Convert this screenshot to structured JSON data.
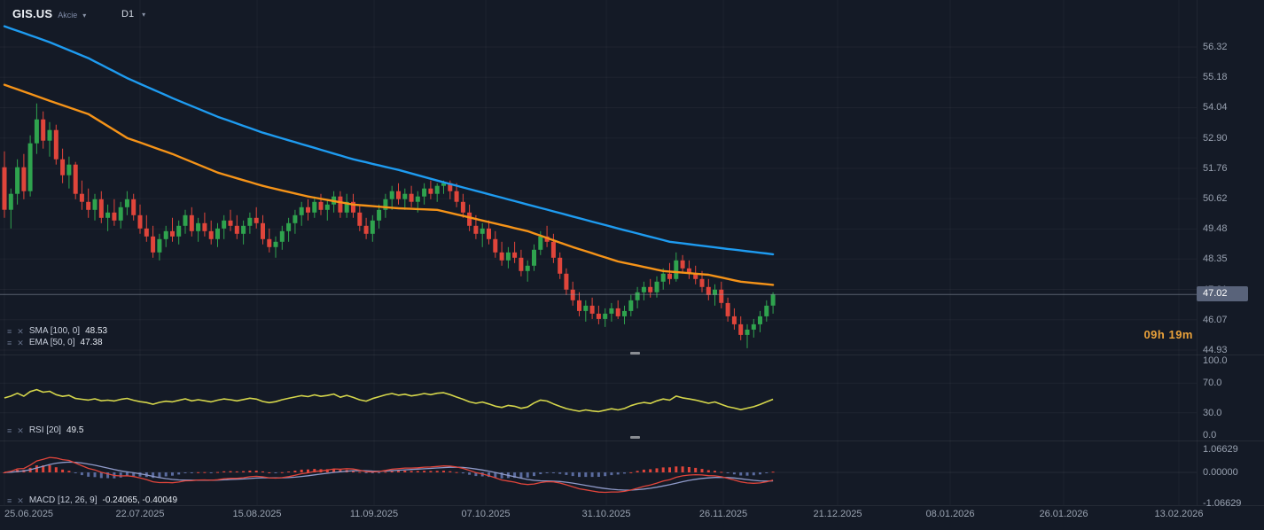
{
  "instrument": {
    "symbol": "GIS.US",
    "type_label": "Akcie",
    "timeframe": "D1"
  },
  "indicator_rows": {
    "sma": {
      "label": "SMA [100, 0]",
      "value": "48.53"
    },
    "ema": {
      "label": "EMA [50, 0]",
      "value": "47.38"
    },
    "rsi": {
      "label": "RSI [20]",
      "value": "49.5"
    },
    "macd": {
      "label": "MACD [12, 26, 9]",
      "value": "-0.24065, -0.40049"
    }
  },
  "price_scale": {
    "ticks": [
      "56.32",
      "55.18",
      "54.04",
      "52.90",
      "51.76",
      "50.62",
      "49.48",
      "48.35",
      "47.21",
      "46.07",
      "44.93"
    ],
    "current_price": "47.02",
    "countdown": "09h 19m"
  },
  "rsi_scale": {
    "ticks": [
      "100.0",
      "70.0",
      "30.0",
      "0.0"
    ]
  },
  "macd_scale": {
    "ticks": [
      "1.06629",
      "0.00000",
      "-1.06629"
    ]
  },
  "time_axis": {
    "labels": [
      "25.06.2025",
      "22.07.2025",
      "15.08.2025",
      "11.09.2025",
      "07.10.2025",
      "31.10.2025",
      "26.11.2025",
      "21.12.2025",
      "08.01.2026",
      "26.01.2026",
      "13.02.2026"
    ]
  },
  "chart_data": {
    "type": "candlestick",
    "symbol": "GIS.US",
    "timeframe": "D1",
    "title": "GIS.US daily candlestick chart with SMA(100), EMA(50), RSI(20) and MACD(12,26,9)",
    "x_axis_labels": [
      "25.06.2025",
      "22.07.2025",
      "15.08.2025",
      "11.09.2025",
      "07.10.2025",
      "31.10.2025",
      "26.11.2025",
      "21.12.2025",
      "08.01.2026",
      "26.01.2026",
      "13.02.2026"
    ],
    "y_axis_ticks": [
      56.32,
      55.18,
      54.04,
      52.9,
      51.76,
      50.62,
      49.48,
      48.35,
      47.21,
      46.07,
      44.93
    ],
    "current_price": 47.02,
    "candle_close_countdown": "09h 19m",
    "candles": [
      [
        51.8,
        52.4,
        49.9,
        50.2
      ],
      [
        50.2,
        51.0,
        49.5,
        50.8
      ],
      [
        50.8,
        52.1,
        50.4,
        51.8
      ],
      [
        51.8,
        52.3,
        50.6,
        50.9
      ],
      [
        50.9,
        53.0,
        50.7,
        52.7
      ],
      [
        52.7,
        54.2,
        52.3,
        53.6
      ],
      [
        53.6,
        53.9,
        52.5,
        52.8
      ],
      [
        52.8,
        53.5,
        52.2,
        53.2
      ],
      [
        53.2,
        53.4,
        51.9,
        52.1
      ],
      [
        52.1,
        52.5,
        51.2,
        51.5
      ],
      [
        51.5,
        52.2,
        51.0,
        51.9
      ],
      [
        51.9,
        52.0,
        50.6,
        50.8
      ],
      [
        50.8,
        51.3,
        50.2,
        50.5
      ],
      [
        50.5,
        51.0,
        49.9,
        50.2
      ],
      [
        50.2,
        50.8,
        49.8,
        50.6
      ],
      [
        50.6,
        50.9,
        49.7,
        49.9
      ],
      [
        49.9,
        50.4,
        49.4,
        50.1
      ],
      [
        50.1,
        50.6,
        49.6,
        49.8
      ],
      [
        49.8,
        50.5,
        49.5,
        50.3
      ],
      [
        50.3,
        50.9,
        50.0,
        50.6
      ],
      [
        50.6,
        50.8,
        49.8,
        50.0
      ],
      [
        50.0,
        50.4,
        49.3,
        49.5
      ],
      [
        49.5,
        50.0,
        49.0,
        49.2
      ],
      [
        49.2,
        49.6,
        48.4,
        48.6
      ],
      [
        48.6,
        49.3,
        48.3,
        49.1
      ],
      [
        49.1,
        49.6,
        48.8,
        49.4
      ],
      [
        49.4,
        49.9,
        49.0,
        49.2
      ],
      [
        49.2,
        49.8,
        48.9,
        49.6
      ],
      [
        49.6,
        50.2,
        49.3,
        50.0
      ],
      [
        50.0,
        50.3,
        49.2,
        49.4
      ],
      [
        49.4,
        49.9,
        49.0,
        49.7
      ],
      [
        49.7,
        50.1,
        49.2,
        49.4
      ],
      [
        49.4,
        49.8,
        48.9,
        49.1
      ],
      [
        49.1,
        49.7,
        48.8,
        49.5
      ],
      [
        49.5,
        50.0,
        49.1,
        49.8
      ],
      [
        49.8,
        50.2,
        49.4,
        49.6
      ],
      [
        49.6,
        50.0,
        49.1,
        49.3
      ],
      [
        49.3,
        49.8,
        48.9,
        49.6
      ],
      [
        49.6,
        50.1,
        49.3,
        49.9
      ],
      [
        49.9,
        50.3,
        49.5,
        49.7
      ],
      [
        49.7,
        50.0,
        48.9,
        49.1
      ],
      [
        49.1,
        49.5,
        48.6,
        48.8
      ],
      [
        48.8,
        49.2,
        48.4,
        49.0
      ],
      [
        49.0,
        49.6,
        48.7,
        49.4
      ],
      [
        49.4,
        49.9,
        49.0,
        49.7
      ],
      [
        49.7,
        50.2,
        49.3,
        50.0
      ],
      [
        50.0,
        50.5,
        49.6,
        50.3
      ],
      [
        50.3,
        50.6,
        49.8,
        50.1
      ],
      [
        50.1,
        50.7,
        49.9,
        50.5
      ],
      [
        50.5,
        50.8,
        50.0,
        50.2
      ],
      [
        50.2,
        50.6,
        49.8,
        50.4
      ],
      [
        50.4,
        50.9,
        50.1,
        50.7
      ],
      [
        50.7,
        50.9,
        49.9,
        50.1
      ],
      [
        50.1,
        50.8,
        49.9,
        50.5
      ],
      [
        50.5,
        50.8,
        49.9,
        50.1
      ],
      [
        50.1,
        50.4,
        49.4,
        49.6
      ],
      [
        49.6,
        49.9,
        49.1,
        49.3
      ],
      [
        49.3,
        50.0,
        49.0,
        49.8
      ],
      [
        49.8,
        50.4,
        49.5,
        50.2
      ],
      [
        50.2,
        50.8,
        49.9,
        50.6
      ],
      [
        50.6,
        51.1,
        50.2,
        50.9
      ],
      [
        50.9,
        51.2,
        50.4,
        50.6
      ],
      [
        50.6,
        51.0,
        50.2,
        50.8
      ],
      [
        50.8,
        51.1,
        50.3,
        50.5
      ],
      [
        50.5,
        50.9,
        50.1,
        50.7
      ],
      [
        50.7,
        51.2,
        50.4,
        51.0
      ],
      [
        51.0,
        51.3,
        50.6,
        50.8
      ],
      [
        50.8,
        51.2,
        50.5,
        51.1
      ],
      [
        51.1,
        51.3,
        50.8,
        51.2
      ],
      [
        51.2,
        51.3,
        50.6,
        50.9
      ],
      [
        50.9,
        51.2,
        50.3,
        50.5
      ],
      [
        50.5,
        50.8,
        49.9,
        50.1
      ],
      [
        50.1,
        50.4,
        49.4,
        49.6
      ],
      [
        49.6,
        50.0,
        49.1,
        49.3
      ],
      [
        49.3,
        49.7,
        48.8,
        49.5
      ],
      [
        49.5,
        49.8,
        48.9,
        49.1
      ],
      [
        49.1,
        49.4,
        48.4,
        48.6
      ],
      [
        48.6,
        49.0,
        48.1,
        48.3
      ],
      [
        48.3,
        48.8,
        48.0,
        48.6
      ],
      [
        48.6,
        49.0,
        48.2,
        48.4
      ],
      [
        48.4,
        48.7,
        47.7,
        47.9
      ],
      [
        47.9,
        48.3,
        47.5,
        48.1
      ],
      [
        48.1,
        48.9,
        47.9,
        48.7
      ],
      [
        48.7,
        49.4,
        48.5,
        49.2
      ],
      [
        49.2,
        49.6,
        48.8,
        49.0
      ],
      [
        49.0,
        49.3,
        48.2,
        48.4
      ],
      [
        48.4,
        48.6,
        47.6,
        47.8
      ],
      [
        47.8,
        48.0,
        47.0,
        47.2
      ],
      [
        47.2,
        47.5,
        46.6,
        46.8
      ],
      [
        46.8,
        47.1,
        46.2,
        46.4
      ],
      [
        46.4,
        46.8,
        46.0,
        46.6
      ],
      [
        46.6,
        46.9,
        46.1,
        46.3
      ],
      [
        46.3,
        46.6,
        45.9,
        46.1
      ],
      [
        46.1,
        46.5,
        45.8,
        46.3
      ],
      [
        46.3,
        46.7,
        46.0,
        46.5
      ],
      [
        46.5,
        46.8,
        46.1,
        46.2
      ],
      [
        46.2,
        46.6,
        45.9,
        46.4
      ],
      [
        46.4,
        47.0,
        46.2,
        46.8
      ],
      [
        46.8,
        47.3,
        46.5,
        47.1
      ],
      [
        47.1,
        47.5,
        46.8,
        47.3
      ],
      [
        47.3,
        47.6,
        46.9,
        47.1
      ],
      [
        47.1,
        47.7,
        46.9,
        47.5
      ],
      [
        47.5,
        48.0,
        47.2,
        47.8
      ],
      [
        47.8,
        48.2,
        47.4,
        47.6
      ],
      [
        47.6,
        48.6,
        47.5,
        48.3
      ],
      [
        48.3,
        48.5,
        47.8,
        48.0
      ],
      [
        48.0,
        48.3,
        47.6,
        47.8
      ],
      [
        47.8,
        48.1,
        47.4,
        47.6
      ],
      [
        47.6,
        47.9,
        47.1,
        47.3
      ],
      [
        47.3,
        47.6,
        46.8,
        47.0
      ],
      [
        47.0,
        47.4,
        46.6,
        47.2
      ],
      [
        47.2,
        47.5,
        46.5,
        46.7
      ],
      [
        46.7,
        46.9,
        46.0,
        46.2
      ],
      [
        46.2,
        46.5,
        45.7,
        45.9
      ],
      [
        45.9,
        46.2,
        45.3,
        45.5
      ],
      [
        45.5,
        45.9,
        45.0,
        45.7
      ],
      [
        45.7,
        46.1,
        45.4,
        45.9
      ],
      [
        45.9,
        46.4,
        45.6,
        46.2
      ],
      [
        46.2,
        46.8,
        46.0,
        46.6
      ],
      [
        46.6,
        47.1,
        46.3,
        47.02
      ]
    ],
    "overlays": [
      {
        "name": "SMA(100)",
        "current": 48.53,
        "color": "#1e9bf0",
        "points": [
          [
            1,
            57.1
          ],
          [
            8,
            56.5
          ],
          [
            14,
            55.9
          ],
          [
            20,
            55.15
          ],
          [
            27,
            54.4
          ],
          [
            34,
            53.7
          ],
          [
            41,
            53.1
          ],
          [
            48,
            52.6
          ],
          [
            55,
            52.1
          ],
          [
            62,
            51.7
          ],
          [
            68,
            51.3
          ],
          [
            75,
            50.85
          ],
          [
            82,
            50.4
          ],
          [
            89,
            49.95
          ],
          [
            96,
            49.5
          ],
          [
            104,
            49.0
          ],
          [
            112,
            48.76
          ],
          [
            120,
            48.53
          ]
        ]
      },
      {
        "name": "EMA(50)",
        "current": 47.38,
        "color": "#f59318",
        "points": [
          [
            1,
            54.9
          ],
          [
            8,
            54.3
          ],
          [
            14,
            53.8
          ],
          [
            20,
            52.9
          ],
          [
            27,
            52.3
          ],
          [
            34,
            51.6
          ],
          [
            41,
            51.1
          ],
          [
            48,
            50.7
          ],
          [
            55,
            50.4
          ],
          [
            62,
            50.26
          ],
          [
            68,
            50.2
          ],
          [
            75,
            49.8
          ],
          [
            82,
            49.4
          ],
          [
            89,
            48.8
          ],
          [
            96,
            48.26
          ],
          [
            103,
            47.9
          ],
          [
            110,
            47.76
          ],
          [
            115,
            47.5
          ],
          [
            120,
            47.38
          ]
        ]
      }
    ],
    "rsi": {
      "period": 20,
      "current": 49.5,
      "axis_ticks": [
        100.0,
        70.0,
        30.0,
        0.0
      ]
    },
    "macd": {
      "fast": 12,
      "slow": 26,
      "signal": 9,
      "current_macd": -0.24065,
      "current_signal": -0.40049,
      "axis_ticks": [
        1.06629,
        0.0,
        -1.06629
      ]
    },
    "colors": {
      "background": "#141a26",
      "up": "#2fa34e",
      "down": "#e0453b",
      "sma": "#1e9bf0",
      "ema": "#f59318",
      "rsi": "#d4d54b",
      "macd_line": "#e0453b",
      "macd_signal": "#8f9ac9",
      "hist_pos": "#e0453b",
      "hist_neg": "#5a6b9e",
      "current_price_line": "#9aa3b3",
      "countdown": "#e9a13a"
    }
  }
}
